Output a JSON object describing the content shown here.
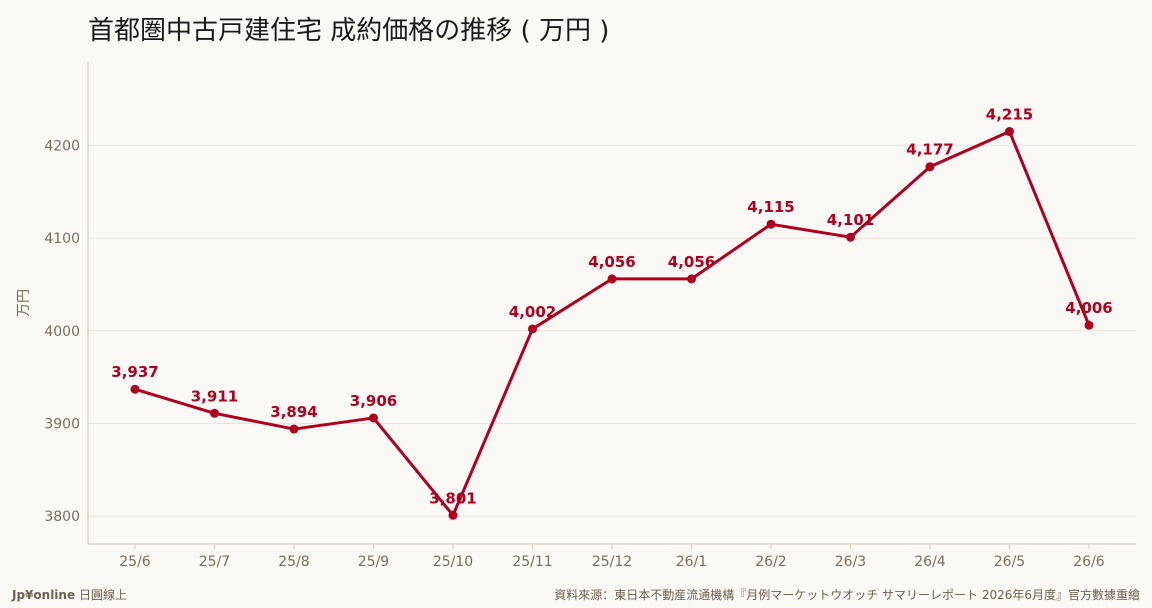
{
  "title": "首都圏中古戸建住宅 成約価格の推移 ( 万円 )",
  "footer": {
    "brand": "Jp¥online",
    "brand_suffix": "日圓線上",
    "source": "資料來源：東日本不動産流通機構『月例マーケットウオッチ サマリーレポート 2026年6月度』官方數據重繪"
  },
  "colors": {
    "line": "#b00020",
    "background": "#fbf9f5",
    "grid": "#e8e4dc",
    "axis_text": "#7a6e5e"
  },
  "chart_data": {
    "type": "line",
    "title": "首都圏中古戸建住宅 成約価格の推移 ( 万円 )",
    "xlabel": "",
    "ylabel": "万円",
    "categories": [
      "25/6",
      "25/7",
      "25/8",
      "25/9",
      "25/10",
      "25/11",
      "25/12",
      "26/1",
      "26/2",
      "26/3",
      "26/4",
      "26/5",
      "26/6"
    ],
    "series": [
      {
        "values": [
          3937,
          3911,
          3894,
          3906,
          3801,
          4002,
          4056,
          4056,
          4115,
          4101,
          4177,
          4215,
          4006
        ],
        "labels": [
          "3,937",
          "3,911",
          "3,894",
          "3,906",
          "3,801",
          "4,002",
          "4,056",
          "4,056",
          "4,115",
          "4,101",
          "4,177",
          "4,215",
          "4,006"
        ]
      }
    ],
    "yticks": [
      3800,
      3900,
      4000,
      4100,
      4200
    ],
    "ylim": [
      3770,
      4290
    ],
    "grid": "horizontal",
    "legend": "none"
  }
}
